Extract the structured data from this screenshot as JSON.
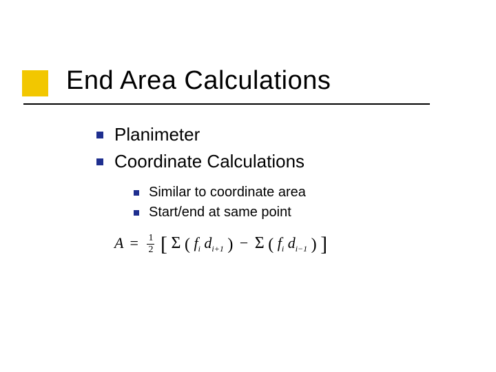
{
  "title": "End Area Calculations",
  "colors": {
    "accent": "#f2c700",
    "bullet": "#1f2f8f",
    "text": "#000000",
    "background": "#ffffff"
  },
  "typography": {
    "title_fontsize": 38,
    "list1_fontsize": 26,
    "list2_fontsize": 20,
    "formula_fontsize": 22,
    "title_font": "Verdana",
    "formula_font": "Times New Roman"
  },
  "list1": {
    "items": [
      {
        "text": "Planimeter"
      },
      {
        "text": "Coordinate Calculations"
      }
    ]
  },
  "list2": {
    "items": [
      {
        "text": "Similar to coordinate area"
      },
      {
        "text": "Start/end at same point"
      }
    ]
  },
  "formula": {
    "latex": "A = \\tfrac{1}{2}\\left[\\Sigma(f_i d_{i+1}) - \\Sigma(f_i d_{i-1})\\right]",
    "lhs": "A",
    "fraction": {
      "num": "1",
      "den": "2"
    },
    "term1": {
      "sigma": "Σ",
      "f": "f",
      "f_sub": "i",
      "d": "d",
      "d_sub": "i+1"
    },
    "term2": {
      "sigma": "Σ",
      "f": "f",
      "f_sub": "i",
      "d": "d",
      "d_sub": "i−1"
    }
  }
}
